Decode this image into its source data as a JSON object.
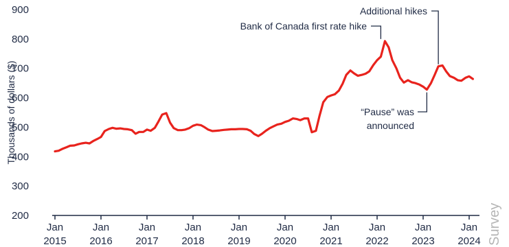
{
  "chart_data": {
    "type": "line",
    "ylabel": "Thousands of dollars ($)",
    "ylim": [
      200,
      900
    ],
    "y_ticks": [
      "200",
      "300",
      "400",
      "500",
      "600",
      "700",
      "800",
      "900"
    ],
    "x_ticks": [
      {
        "month": "Jan",
        "year": "2015",
        "x": 2015.0
      },
      {
        "month": "Jan",
        "year": "2016",
        "x": 2016.0
      },
      {
        "month": "Jan",
        "year": "2017",
        "x": 2017.0
      },
      {
        "month": "Jan",
        "year": "2018",
        "x": 2018.0
      },
      {
        "month": "Jan",
        "year": "2019",
        "x": 2019.0
      },
      {
        "month": "Jan",
        "year": "2020",
        "x": 2020.0
      },
      {
        "month": "Jan",
        "year": "2021",
        "x": 2021.0
      },
      {
        "month": "Jan",
        "year": "2022",
        "x": 2022.0
      },
      {
        "month": "Jan",
        "year": "2023",
        "x": 2023.0
      },
      {
        "month": "Jan",
        "year": "2024",
        "x": 2024.0
      }
    ],
    "color": "#e8231d",
    "series": [
      {
        "points": [
          [
            2015.0,
            418
          ],
          [
            2015.08,
            420
          ],
          [
            2015.17,
            427
          ],
          [
            2015.25,
            432
          ],
          [
            2015.33,
            437
          ],
          [
            2015.42,
            438
          ],
          [
            2015.5,
            442
          ],
          [
            2015.58,
            445
          ],
          [
            2015.67,
            447
          ],
          [
            2015.75,
            445
          ],
          [
            2015.83,
            453
          ],
          [
            2015.92,
            460
          ],
          [
            2016.0,
            467
          ],
          [
            2016.08,
            487
          ],
          [
            2016.17,
            494
          ],
          [
            2016.25,
            498
          ],
          [
            2016.33,
            495
          ],
          [
            2016.42,
            496
          ],
          [
            2016.5,
            494
          ],
          [
            2016.58,
            493
          ],
          [
            2016.67,
            490
          ],
          [
            2016.75,
            478
          ],
          [
            2016.83,
            484
          ],
          [
            2016.92,
            484
          ],
          [
            2017.0,
            492
          ],
          [
            2017.08,
            488
          ],
          [
            2017.17,
            498
          ],
          [
            2017.25,
            520
          ],
          [
            2017.33,
            543
          ],
          [
            2017.42,
            548
          ],
          [
            2017.5,
            516
          ],
          [
            2017.58,
            497
          ],
          [
            2017.67,
            490
          ],
          [
            2017.75,
            490
          ],
          [
            2017.83,
            492
          ],
          [
            2017.92,
            497
          ],
          [
            2018.0,
            505
          ],
          [
            2018.08,
            509
          ],
          [
            2018.17,
            507
          ],
          [
            2018.25,
            500
          ],
          [
            2018.33,
            492
          ],
          [
            2018.42,
            487
          ],
          [
            2018.5,
            488
          ],
          [
            2018.58,
            489
          ],
          [
            2018.67,
            491
          ],
          [
            2018.75,
            492
          ],
          [
            2018.83,
            493
          ],
          [
            2018.92,
            493
          ],
          [
            2019.0,
            494
          ],
          [
            2019.08,
            494
          ],
          [
            2019.17,
            493
          ],
          [
            2019.25,
            488
          ],
          [
            2019.33,
            477
          ],
          [
            2019.42,
            470
          ],
          [
            2019.5,
            478
          ],
          [
            2019.58,
            488
          ],
          [
            2019.67,
            497
          ],
          [
            2019.75,
            503
          ],
          [
            2019.83,
            509
          ],
          [
            2019.92,
            512
          ],
          [
            2020.0,
            518
          ],
          [
            2020.08,
            522
          ],
          [
            2020.17,
            530
          ],
          [
            2020.25,
            528
          ],
          [
            2020.33,
            524
          ],
          [
            2020.42,
            530
          ],
          [
            2020.5,
            530
          ],
          [
            2020.58,
            483
          ],
          [
            2020.67,
            488
          ],
          [
            2020.75,
            540
          ],
          [
            2020.83,
            585
          ],
          [
            2020.92,
            603
          ],
          [
            2021.0,
            608
          ],
          [
            2021.08,
            612
          ],
          [
            2021.17,
            625
          ],
          [
            2021.25,
            648
          ],
          [
            2021.33,
            678
          ],
          [
            2021.42,
            693
          ],
          [
            2021.5,
            683
          ],
          [
            2021.58,
            675
          ],
          [
            2021.67,
            678
          ],
          [
            2021.75,
            682
          ],
          [
            2021.83,
            690
          ],
          [
            2021.92,
            712
          ],
          [
            2022.0,
            728
          ],
          [
            2022.08,
            740
          ],
          [
            2022.17,
            793
          ],
          [
            2022.25,
            772
          ],
          [
            2022.33,
            728
          ],
          [
            2022.42,
            700
          ],
          [
            2022.5,
            668
          ],
          [
            2022.58,
            652
          ],
          [
            2022.67,
            660
          ],
          [
            2022.75,
            653
          ],
          [
            2022.83,
            650
          ],
          [
            2022.92,
            645
          ],
          [
            2023.0,
            638
          ],
          [
            2023.08,
            628
          ],
          [
            2023.17,
            650
          ],
          [
            2023.25,
            678
          ],
          [
            2023.33,
            707
          ],
          [
            2023.42,
            710
          ],
          [
            2023.5,
            690
          ],
          [
            2023.58,
            674
          ],
          [
            2023.67,
            668
          ],
          [
            2023.75,
            660
          ],
          [
            2023.83,
            658
          ],
          [
            2023.92,
            668
          ],
          [
            2024.0,
            673
          ],
          [
            2024.08,
            664
          ]
        ]
      }
    ],
    "annotations": [
      {
        "text": "Bank of Canada first rate hike",
        "x": 2022.08,
        "y": 793
      },
      {
        "text": "Additional hikes",
        "x": 2023.33,
        "y": 707
      },
      {
        "lines": [
          "“Pause” was",
          "announced"
        ],
        "x": 2023.08,
        "y": 628
      }
    ]
  },
  "watermark": "Survey"
}
